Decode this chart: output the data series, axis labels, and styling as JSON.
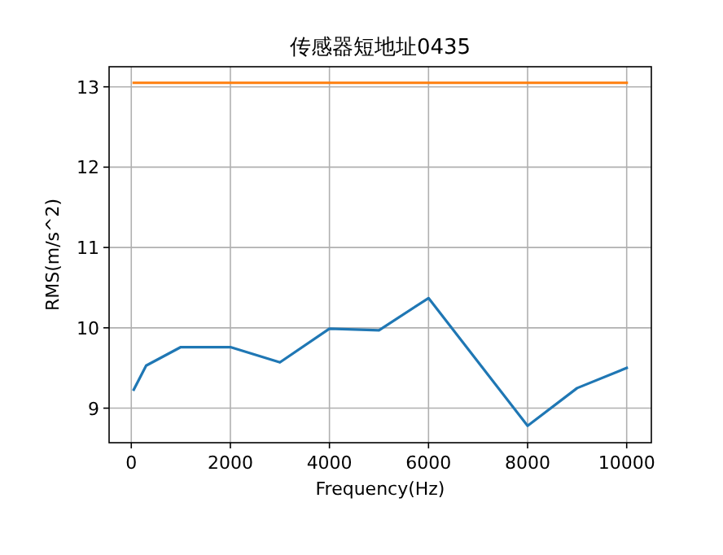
{
  "chart_data": {
    "type": "line",
    "title": "传感器短地址0435",
    "xlabel": "Frequency(Hz)",
    "ylabel": "RMS(m/s^2)",
    "xlim": [
      -448,
      10498
    ],
    "ylim": [
      8.57,
      13.25
    ],
    "xticks": [
      0,
      2000,
      4000,
      6000,
      8000,
      10000
    ],
    "yticks": [
      9,
      10,
      11,
      12,
      13
    ],
    "grid": true,
    "series": [
      {
        "color": "#1f77b4",
        "x": [
          50,
          300,
          1000,
          2000,
          3000,
          4000,
          5000,
          6000,
          8000,
          9000,
          10000
        ],
        "values": [
          9.23,
          9.53,
          9.76,
          9.76,
          9.57,
          9.99,
          9.97,
          10.37,
          8.78,
          9.25,
          9.5
        ]
      },
      {
        "color": "#ff7f0e",
        "x": [
          50,
          10000
        ],
        "values": [
          13.05,
          13.05
        ]
      }
    ]
  }
}
